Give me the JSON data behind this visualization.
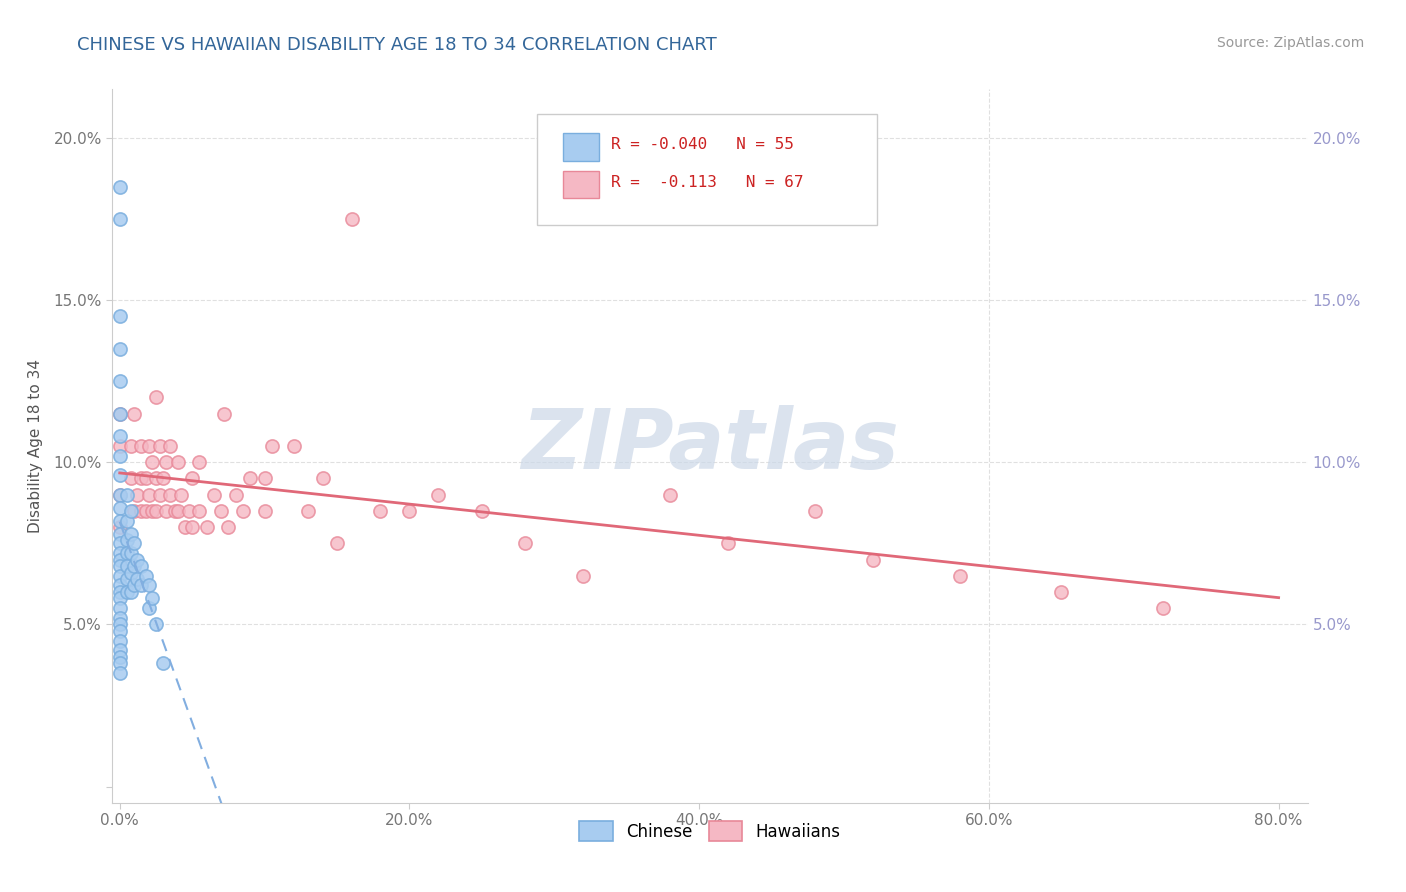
{
  "title": "CHINESE VS HAWAIIAN DISABILITY AGE 18 TO 34 CORRELATION CHART",
  "source": "Source: ZipAtlas.com",
  "ylabel": "Disability Age 18 to 34",
  "xlim": [
    -0.005,
    0.82
  ],
  "ylim": [
    -0.005,
    0.215
  ],
  "xticks": [
    0.0,
    0.2,
    0.4,
    0.6,
    0.8
  ],
  "xtick_labels": [
    "0.0%",
    "20.0%",
    "40.0%",
    "60.0%",
    "80.0%"
  ],
  "yticks": [
    0.0,
    0.05,
    0.1,
    0.15,
    0.2
  ],
  "ytick_labels": [
    "",
    "5.0%",
    "10.0%",
    "15.0%",
    "20.0%"
  ],
  "chinese_color": "#a8ccf0",
  "chinese_edge_color": "#7aaede",
  "hawaiian_color": "#f5b8c4",
  "hawaiian_edge_color": "#e88898",
  "chinese_line_color": "#82aee0",
  "hawaiian_line_color": "#e06878",
  "right_tick_color": "#9999cc",
  "watermark_color": "#ccd8e8",
  "background_color": "#ffffff",
  "grid_color": "#e0e0e0",
  "title_color": "#336699",
  "source_color": "#999999",
  "ylabel_color": "#555555",
  "tick_color": "#777777",
  "legend_text_color": "#cc2222",
  "chinese_scatter_x": [
    0.0,
    0.0,
    0.0,
    0.0,
    0.0,
    0.0,
    0.0,
    0.0,
    0.0,
    0.0,
    0.0,
    0.0,
    0.0,
    0.0,
    0.0,
    0.0,
    0.0,
    0.0,
    0.0,
    0.0,
    0.0,
    0.0,
    0.0,
    0.0,
    0.0,
    0.0,
    0.0,
    0.0,
    0.0,
    0.0,
    0.005,
    0.005,
    0.005,
    0.005,
    0.005,
    0.005,
    0.005,
    0.008,
    0.008,
    0.008,
    0.008,
    0.008,
    0.01,
    0.01,
    0.01,
    0.012,
    0.012,
    0.015,
    0.015,
    0.018,
    0.02,
    0.02,
    0.022,
    0.025,
    0.03
  ],
  "chinese_scatter_y": [
    0.185,
    0.175,
    0.145,
    0.135,
    0.125,
    0.115,
    0.108,
    0.102,
    0.096,
    0.09,
    0.086,
    0.082,
    0.078,
    0.075,
    0.072,
    0.07,
    0.068,
    0.065,
    0.062,
    0.06,
    0.058,
    0.055,
    0.052,
    0.05,
    0.048,
    0.045,
    0.042,
    0.04,
    0.038,
    0.035,
    0.09,
    0.082,
    0.076,
    0.072,
    0.068,
    0.064,
    0.06,
    0.085,
    0.078,
    0.072,
    0.066,
    0.06,
    0.075,
    0.068,
    0.062,
    0.07,
    0.064,
    0.068,
    0.062,
    0.065,
    0.062,
    0.055,
    0.058,
    0.05,
    0.038
  ],
  "hawaiian_scatter_x": [
    0.0,
    0.0,
    0.0,
    0.0,
    0.008,
    0.008,
    0.01,
    0.01,
    0.012,
    0.015,
    0.015,
    0.015,
    0.018,
    0.018,
    0.02,
    0.02,
    0.022,
    0.022,
    0.025,
    0.025,
    0.025,
    0.028,
    0.028,
    0.03,
    0.032,
    0.032,
    0.035,
    0.035,
    0.038,
    0.04,
    0.04,
    0.042,
    0.045,
    0.048,
    0.05,
    0.05,
    0.055,
    0.055,
    0.06,
    0.065,
    0.07,
    0.072,
    0.075,
    0.08,
    0.085,
    0.09,
    0.1,
    0.1,
    0.105,
    0.12,
    0.13,
    0.14,
    0.15,
    0.16,
    0.18,
    0.2,
    0.22,
    0.25,
    0.28,
    0.32,
    0.38,
    0.42,
    0.48,
    0.52,
    0.58,
    0.65,
    0.72
  ],
  "hawaiian_scatter_y": [
    0.115,
    0.105,
    0.09,
    0.08,
    0.105,
    0.095,
    0.115,
    0.085,
    0.09,
    0.105,
    0.095,
    0.085,
    0.095,
    0.085,
    0.105,
    0.09,
    0.1,
    0.085,
    0.12,
    0.095,
    0.085,
    0.105,
    0.09,
    0.095,
    0.1,
    0.085,
    0.105,
    0.09,
    0.085,
    0.1,
    0.085,
    0.09,
    0.08,
    0.085,
    0.095,
    0.08,
    0.1,
    0.085,
    0.08,
    0.09,
    0.085,
    0.115,
    0.08,
    0.09,
    0.085,
    0.095,
    0.095,
    0.085,
    0.105,
    0.105,
    0.085,
    0.095,
    0.075,
    0.175,
    0.085,
    0.085,
    0.09,
    0.085,
    0.075,
    0.065,
    0.09,
    0.075,
    0.085,
    0.07,
    0.065,
    0.06,
    0.055
  ]
}
